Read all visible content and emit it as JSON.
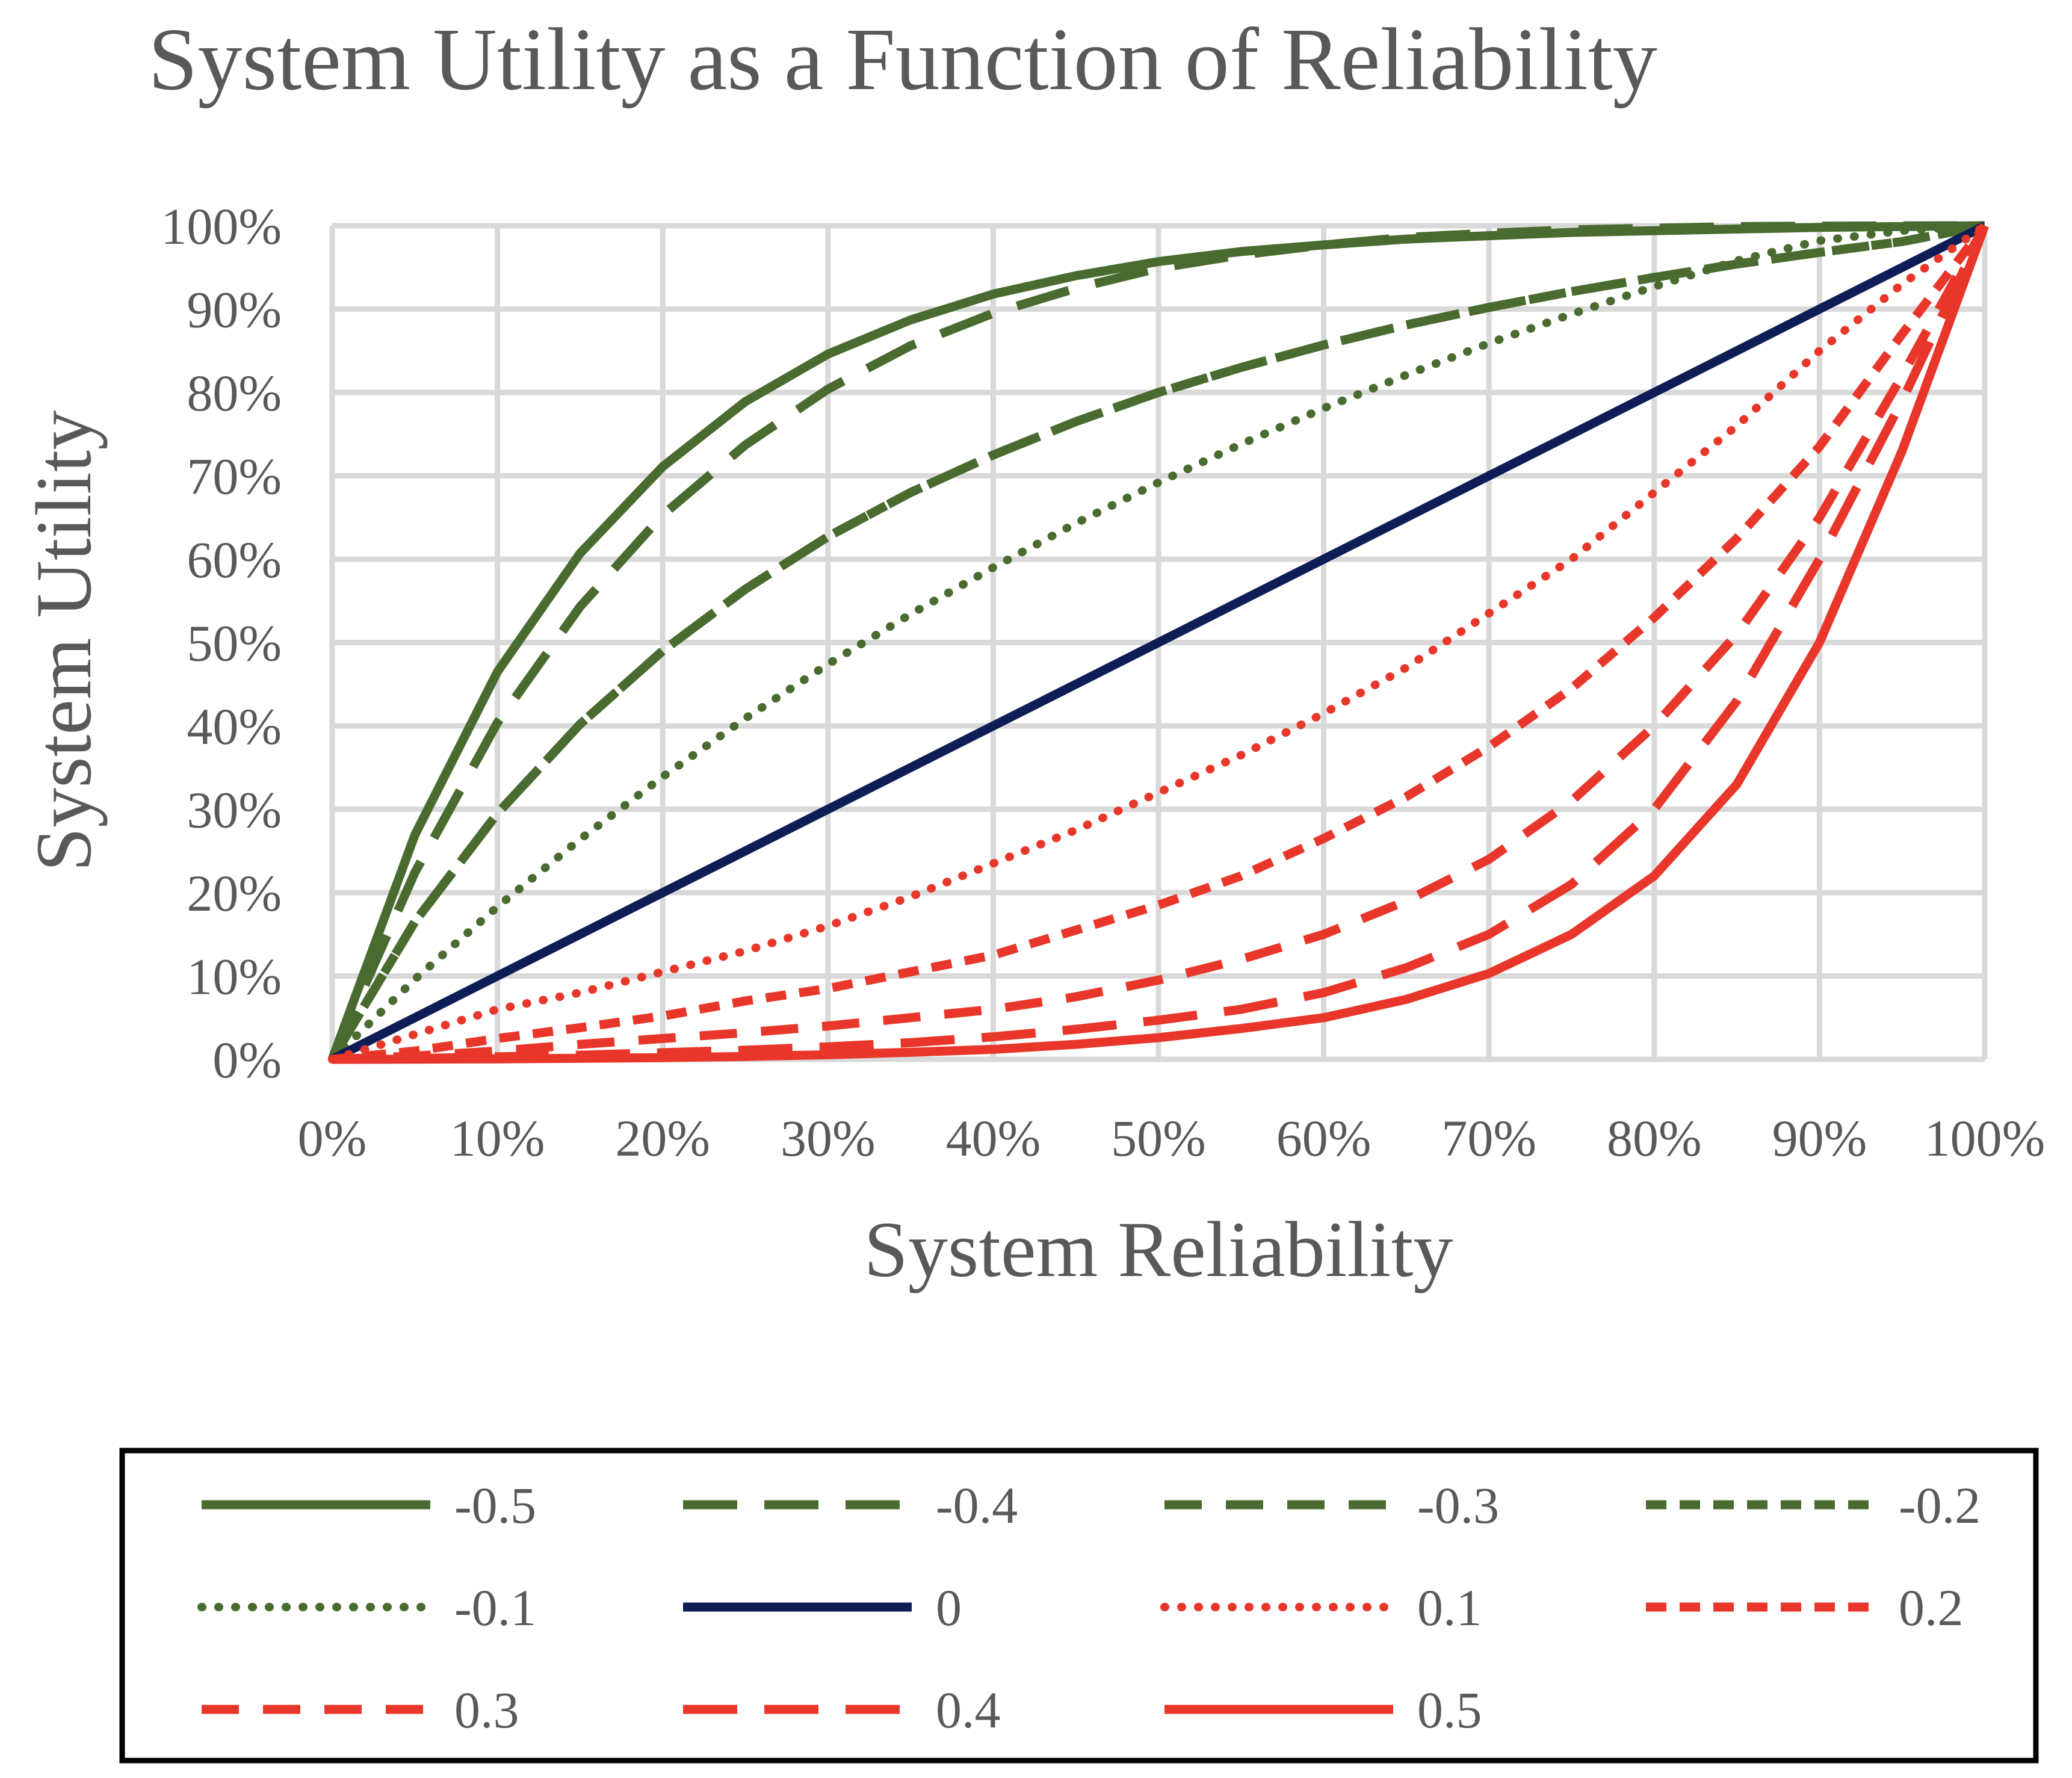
{
  "chart_data": {
    "type": "line",
    "title": "System Utility as a Function of Reliability",
    "xlabel": "System Reliability",
    "ylabel": "System Utility",
    "xlim": [
      0,
      1
    ],
    "ylim": [
      0,
      1
    ],
    "x_ticks": [
      "0%",
      "10%",
      "20%",
      "30%",
      "40%",
      "50%",
      "60%",
      "70%",
      "80%",
      "90%",
      "100%"
    ],
    "y_ticks": [
      "0%",
      "10%",
      "20%",
      "30%",
      "40%",
      "50%",
      "60%",
      "70%",
      "80%",
      "90%",
      "100%"
    ],
    "grid": true,
    "legend_position": "bottom",
    "x": [
      0,
      0.05,
      0.1,
      0.15,
      0.2,
      0.25,
      0.3,
      0.35,
      0.4,
      0.45,
      0.5,
      0.55,
      0.6,
      0.65,
      0.7,
      0.75,
      0.8,
      0.85,
      0.9,
      0.95,
      1
    ],
    "series": [
      {
        "name": "-0.5",
        "color": "#4a6b2f",
        "dash": "solid",
        "values": [
          0,
          0.269,
          0.465,
          0.607,
          0.711,
          0.789,
          0.846,
          0.887,
          0.918,
          0.94,
          0.957,
          0.969,
          0.977,
          0.984,
          0.988,
          0.992,
          0.994,
          0.996,
          0.998,
          0.999,
          1
        ]
      },
      {
        "name": "-0.4",
        "color": "#4a6b2f",
        "dash": "long-dash",
        "values": [
          0,
          0.224,
          0.404,
          0.543,
          0.653,
          0.737,
          0.804,
          0.856,
          0.895,
          0.925,
          0.949,
          0.965,
          0.977,
          0.986,
          0.991,
          0.995,
          0.997,
          0.999,
          0.9995,
          0.9998,
          1
        ]
      },
      {
        "name": "-0.3",
        "color": "#4a6b2f",
        "dash": "dash",
        "values": [
          0,
          0.165,
          0.295,
          0.402,
          0.49,
          0.564,
          0.627,
          0.68,
          0.725,
          0.765,
          0.8,
          0.83,
          0.857,
          0.881,
          0.902,
          0.921,
          0.938,
          0.954,
          0.968,
          0.981,
          1
        ]
      },
      {
        "name": "-0.2",
        "color": "#4a6b2f",
        "dash": "short-dash",
        "values": [
          0,
          0.165,
          0.295,
          0.402,
          0.49,
          0.564,
          0.627,
          0.68,
          0.725,
          0.765,
          0.8,
          0.83,
          0.857,
          0.881,
          0.902,
          0.921,
          0.938,
          0.954,
          0.968,
          0.981,
          1
        ]
      },
      {
        "name": "-0.1",
        "color": "#4a6b2f",
        "dash": "dot",
        "values": [
          0,
          0.096,
          0.183,
          0.264,
          0.339,
          0.409,
          0.474,
          0.534,
          0.59,
          0.643,
          0.692,
          0.738,
          0.781,
          0.821,
          0.859,
          0.894,
          0.927,
          0.958,
          0.982,
          0.994,
          1
        ]
      },
      {
        "name": "0",
        "color": "#0f1d57",
        "dash": "solid",
        "values": [
          0,
          0.05,
          0.1,
          0.15,
          0.2,
          0.25,
          0.3,
          0.35,
          0.4,
          0.45,
          0.5,
          0.55,
          0.6,
          0.65,
          0.7,
          0.75,
          0.8,
          0.85,
          0.9,
          0.95,
          1
        ]
      },
      {
        "name": "0.1",
        "color": "#e8372a",
        "dash": "dot",
        "values": [
          0,
          0.03,
          0.06,
          0.08,
          0.105,
          0.13,
          0.16,
          0.195,
          0.235,
          0.275,
          0.32,
          0.365,
          0.415,
          0.47,
          0.535,
          0.6,
          0.68,
          0.76,
          0.85,
          0.93,
          1
        ]
      },
      {
        "name": "0.2",
        "color": "#e8372a",
        "dash": "short-dash",
        "values": [
          0,
          0.01,
          0.025,
          0.038,
          0.052,
          0.07,
          0.085,
          0.105,
          0.125,
          0.155,
          0.185,
          0.22,
          0.265,
          0.315,
          0.375,
          0.445,
          0.53,
          0.625,
          0.735,
          0.87,
          1
        ]
      },
      {
        "name": "0.3",
        "color": "#e8372a",
        "dash": "dash",
        "values": [
          0,
          0.004,
          0.01,
          0.018,
          0.025,
          0.032,
          0.04,
          0.05,
          0.06,
          0.075,
          0.095,
          0.12,
          0.15,
          0.19,
          0.24,
          0.31,
          0.4,
          0.51,
          0.65,
          0.82,
          1
        ]
      },
      {
        "name": "0.4",
        "color": "#e8372a",
        "dash": "long-dash",
        "values": [
          0,
          0.001,
          0.003,
          0.005,
          0.008,
          0.011,
          0.015,
          0.02,
          0.027,
          0.036,
          0.047,
          0.06,
          0.08,
          0.11,
          0.15,
          0.21,
          0.3,
          0.43,
          0.6,
          0.79,
          1
        ]
      },
      {
        "name": "0.5",
        "color": "#e8372a",
        "dash": "solid",
        "values": [
          0,
          0.0002,
          0.0006,
          0.0012,
          0.002,
          0.0035,
          0.0055,
          0.0085,
          0.012,
          0.018,
          0.026,
          0.037,
          0.05,
          0.072,
          0.103,
          0.15,
          0.22,
          0.33,
          0.5,
          0.73,
          1
        ]
      }
    ]
  }
}
